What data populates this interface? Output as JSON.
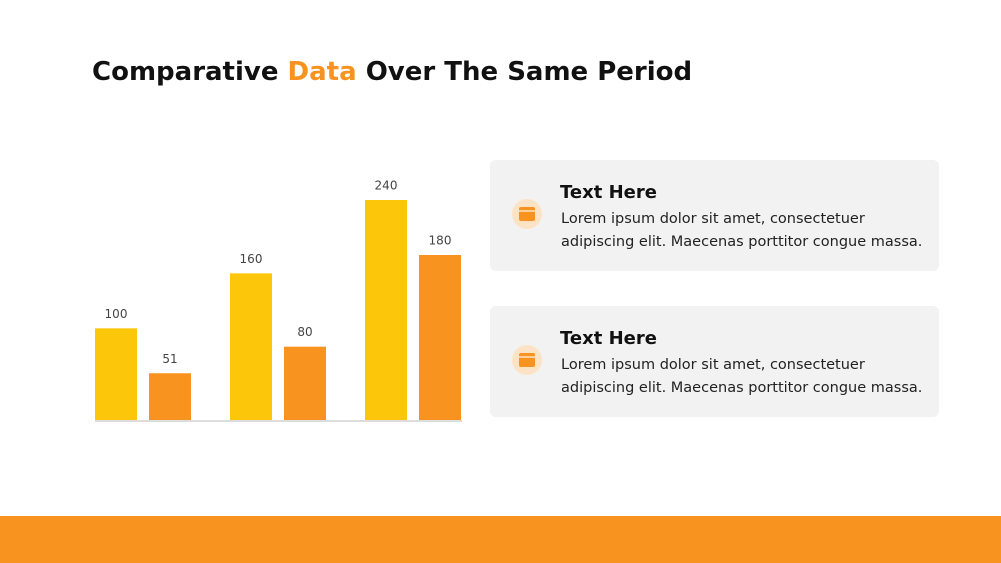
{
  "title": {
    "parts": [
      "Comparative ",
      "Data",
      " Over The Same Period"
    ]
  },
  "chart_data": {
    "type": "bar",
    "categories": [
      null,
      null,
      null
    ],
    "series": [
      {
        "color": "#fcc60a",
        "values": [
          100,
          160,
          240
        ]
      },
      {
        "color": "#f7931e",
        "values": [
          51,
          80,
          180
        ]
      }
    ]
  },
  "cards": [
    {
      "heading": "Text Here",
      "lines": [
        "Lorem ipsum dolor sit amet, consectetuer",
        "adipiscing elit. Maecenas porttitor congue massa."
      ]
    },
    {
      "heading": "Text Here",
      "lines": [
        "Lorem ipsum dolor sit amet, consectetuer",
        "adipiscing elit. Maecenas porttitor congue massa."
      ]
    }
  ]
}
